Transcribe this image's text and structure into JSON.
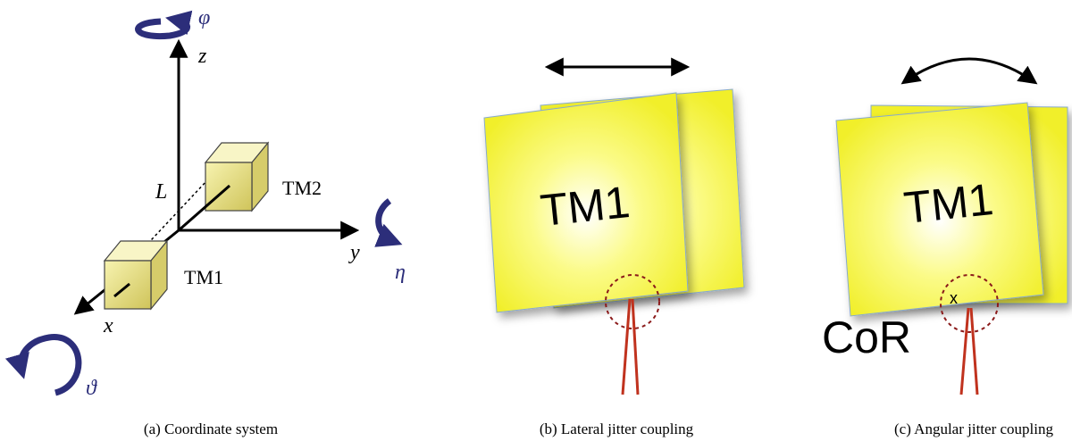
{
  "panels": [
    {
      "caption": "(a) Coordinate system",
      "labels": {
        "phi": "φ",
        "z": "z",
        "L": "L",
        "tm2": "TM2",
        "y": "y",
        "eta": "η",
        "tm1": "TM1",
        "x": "x",
        "theta": "ϑ"
      }
    },
    {
      "caption": "(b) Lateral jitter coupling",
      "mass": "TM1"
    },
    {
      "caption": "(c) Angular jitter coupling",
      "mass": "TM1",
      "cor": "CoR",
      "marker": "x"
    }
  ]
}
